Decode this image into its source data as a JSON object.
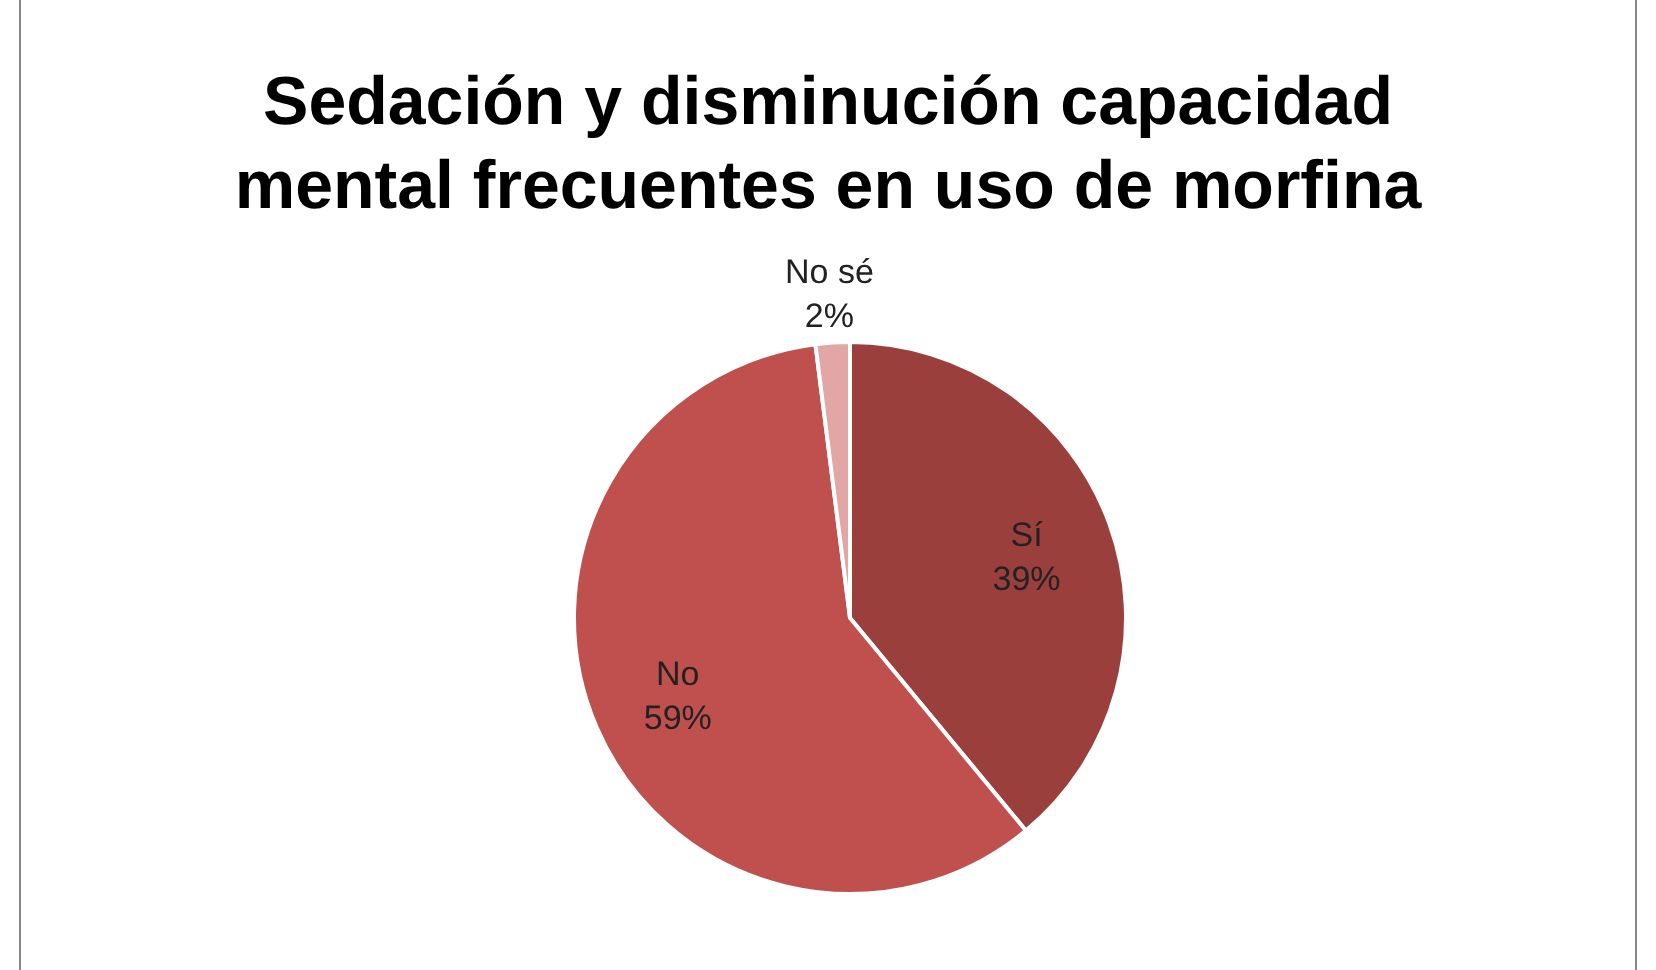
{
  "chart_data": {
    "type": "pie",
    "title": "Sedación y disminución capacidad mental frecuentes en uso de morfina",
    "categories": [
      "Sí",
      "No",
      "No sé"
    ],
    "values": [
      39,
      59,
      2
    ],
    "colors": [
      "#9b3f3d",
      "#c0504d",
      "#e2a6a4"
    ],
    "value_labels": [
      "39%",
      "59%",
      "2%"
    ],
    "legend": false
  }
}
